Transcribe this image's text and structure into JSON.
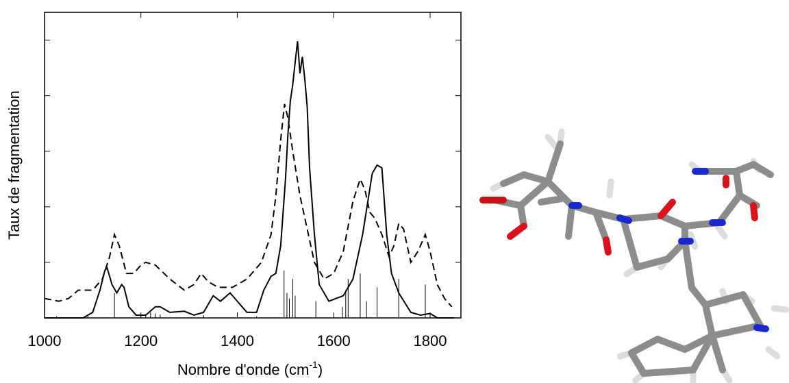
{
  "chart_data": {
    "type": "line",
    "xlabel": {
      "text": "Nombre d'onde (cm",
      "sup": "-1",
      "end": ")"
    },
    "ylabel": "Taux de fragmentation",
    "xlim": [
      1000,
      1864
    ],
    "xticks": [
      1000,
      1200,
      1400,
      1600,
      1800
    ],
    "ylim": [
      0,
      5.5
    ],
    "yticks": [
      0,
      1,
      2,
      3,
      4,
      5
    ],
    "series": [
      {
        "color": "#000000",
        "dash": "solid",
        "x": [
          1000,
          1080,
          1100,
          1115,
          1125,
          1130,
          1140,
          1150,
          1160,
          1165,
          1175,
          1190,
          1210,
          1230,
          1240,
          1260,
          1290,
          1310,
          1330,
          1350,
          1365,
          1385,
          1400,
          1420,
          1440,
          1455,
          1470,
          1480,
          1490,
          1500,
          1505,
          1510,
          1515,
          1520,
          1525,
          1530,
          1535,
          1540,
          1545,
          1550,
          1560,
          1570,
          1590,
          1620,
          1640,
          1660,
          1680,
          1690,
          1700,
          1710,
          1720,
          1735,
          1760,
          1780,
          1800,
          1815,
          1850
        ],
        "values": [
          0,
          0,
          0.1,
          0.5,
          0.85,
          0.9,
          0.6,
          0.45,
          0.6,
          0.55,
          0.2,
          0.05,
          0.05,
          0.2,
          0.2,
          0.1,
          0.12,
          0.05,
          0.1,
          0.4,
          0.3,
          0.45,
          0.3,
          0.1,
          0.1,
          0.5,
          0.75,
          0.8,
          1.3,
          2.5,
          3.3,
          3.9,
          4.2,
          4.6,
          4.98,
          4.4,
          4.7,
          4.3,
          3.8,
          2.7,
          1.5,
          0.6,
          0.3,
          0.4,
          0.7,
          1.5,
          2.6,
          2.75,
          2.7,
          1.5,
          0.8,
          0.45,
          0.1,
          0.05,
          0.08,
          0,
          0
        ]
      },
      {
        "color": "#000000",
        "dash": "dashed",
        "x": [
          1000,
          1030,
          1050,
          1070,
          1100,
          1120,
          1135,
          1145,
          1155,
          1170,
          1185,
          1200,
          1210,
          1230,
          1260,
          1290,
          1310,
          1325,
          1340,
          1360,
          1390,
          1420,
          1450,
          1470,
          1480,
          1490,
          1498,
          1505,
          1515,
          1530,
          1545,
          1560,
          1580,
          1600,
          1620,
          1640,
          1655,
          1665,
          1675,
          1685,
          1700,
          1715,
          1725,
          1735,
          1745,
          1760,
          1775,
          1790,
          1800,
          1815,
          1830,
          1845
        ],
        "values": [
          0.35,
          0.3,
          0.35,
          0.5,
          0.5,
          0.7,
          1.1,
          1.5,
          1.3,
          0.8,
          0.8,
          0.95,
          1.0,
          0.95,
          0.7,
          0.5,
          0.6,
          0.8,
          0.65,
          0.55,
          0.55,
          0.7,
          1.0,
          1.5,
          2.2,
          3.2,
          3.85,
          3.6,
          3.0,
          2.2,
          1.6,
          1.0,
          0.7,
          0.8,
          1.2,
          2.1,
          2.5,
          2.3,
          1.9,
          1.8,
          1.5,
          1.1,
          1.3,
          1.7,
          1.6,
          1.0,
          1.2,
          1.5,
          1.2,
          0.6,
          0.35,
          0.2
        ]
      }
    ],
    "sticks": {
      "color": "#000000",
      "x": [
        1025,
        1090,
        1145,
        1200,
        1210,
        1220,
        1230,
        1240,
        1330,
        1440,
        1497,
        1503,
        1508,
        1515,
        1520,
        1563,
        1618,
        1625,
        1630,
        1655,
        1668,
        1690,
        1735,
        1790
      ],
      "values": [
        0.03,
        0.05,
        0.45,
        0.04,
        0.07,
        0.1,
        0.08,
        0.06,
        0.05,
        0.03,
        0.85,
        0.45,
        0.35,
        0.7,
        0.4,
        0.3,
        0.2,
        0.5,
        0.7,
        0.8,
        0.3,
        0.55,
        0.7,
        0.6
      ]
    }
  }
}
